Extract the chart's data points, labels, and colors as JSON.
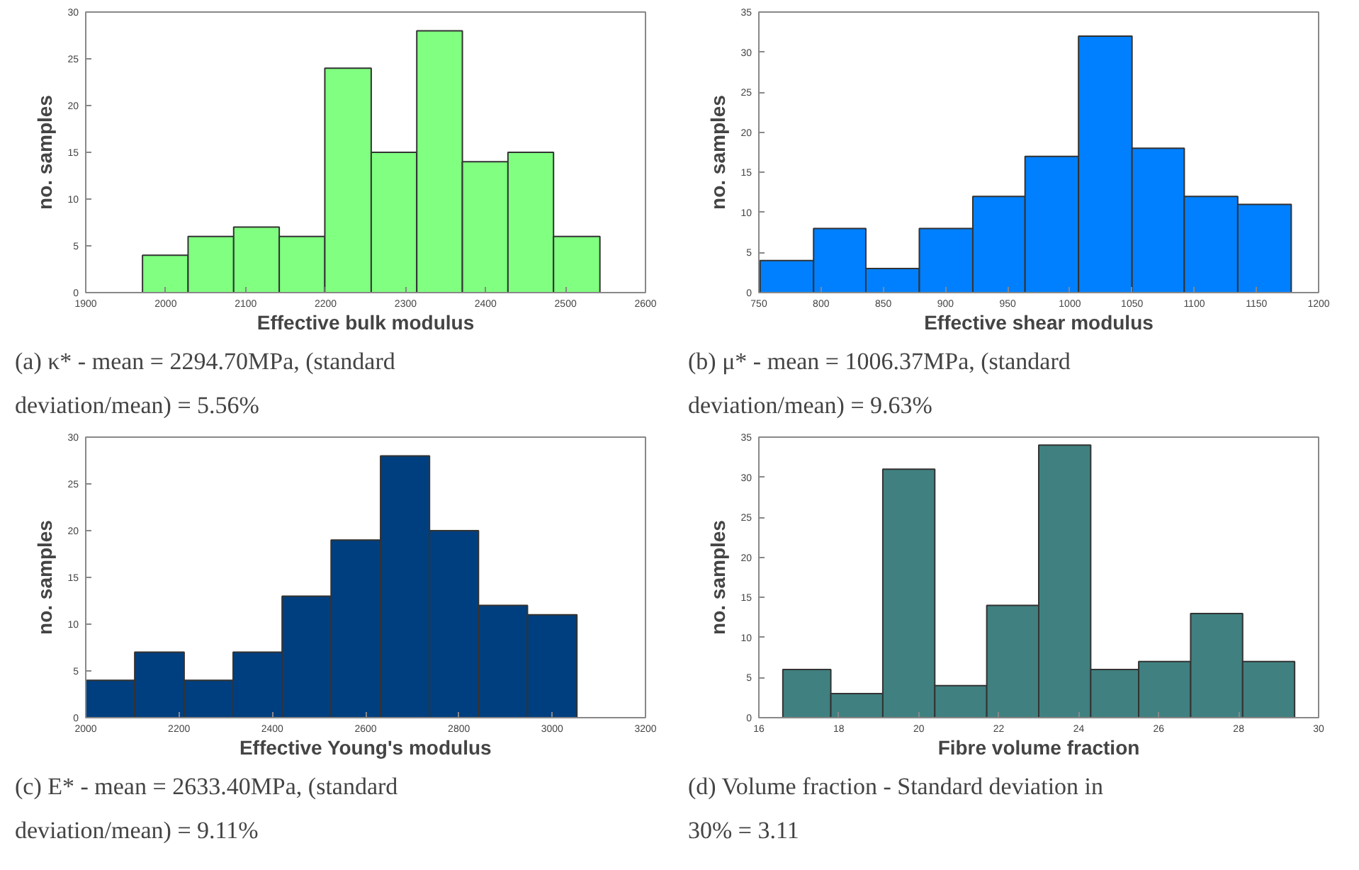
{
  "chart_data": [
    {
      "type": "histogram",
      "xlabel": "Effective bulk modulus",
      "ylabel": "no. samples",
      "color": "#80ff80",
      "bins": [
        1971,
        2028,
        2085,
        2142,
        2199,
        2257,
        2314,
        2371,
        2428,
        2485,
        2543
      ],
      "values": [
        4,
        6,
        7,
        6,
        24,
        15,
        28,
        14,
        15,
        6
      ],
      "xlim": [
        1900,
        2600
      ],
      "xticks": [
        1900,
        2000,
        2100,
        2200,
        2300,
        2400,
        2500,
        2600
      ],
      "ylim": [
        0,
        30
      ],
      "yticks": [
        0,
        5,
        10,
        15,
        20,
        25,
        30
      ],
      "annotations": [
        "(a) κ* - mean = 2294.70MPa, (standard deviation/mean) = 5.56%"
      ]
    },
    {
      "type": "histogram",
      "xlabel": "Effective shear modulus",
      "ylabel": "no. samples",
      "color": "#0080ff",
      "bins": [
        751,
        794,
        836,
        879,
        922,
        964,
        1007,
        1050,
        1092,
        1135,
        1178
      ],
      "values": [
        4,
        8,
        3,
        8,
        12,
        17,
        32,
        18,
        12,
        11
      ],
      "xlim": [
        750,
        1200
      ],
      "xticks": [
        750,
        800,
        850,
        900,
        950,
        1000,
        1050,
        1100,
        1150,
        1200
      ],
      "ylim": [
        0,
        35
      ],
      "yticks": [
        0,
        5,
        10,
        15,
        20,
        25,
        30,
        35
      ],
      "annotations": [
        "(b) μ* - mean = 1006.37MPa, (standard deviation/mean) = 9.63%"
      ]
    },
    {
      "type": "histogram",
      "xlabel": "Effective Young's modulus",
      "ylabel": "no. samples",
      "color": "#003f7f",
      "bins": [
        2000,
        2105,
        2211,
        2316,
        2421,
        2526,
        2632,
        2737,
        2842,
        2947,
        3053
      ],
      "values": [
        4,
        7,
        4,
        7,
        13,
        19,
        28,
        20,
        12,
        11
      ],
      "xlim": [
        2000,
        3200
      ],
      "xticks": [
        2000,
        2200,
        2400,
        2600,
        2800,
        3000,
        3200
      ],
      "ylim": [
        0,
        30
      ],
      "yticks": [
        0,
        5,
        10,
        15,
        20,
        25,
        30
      ],
      "annotations": [
        "(c) E* - mean = 2633.40MPa, (standard deviation/mean) = 9.11%"
      ]
    },
    {
      "type": "histogram",
      "xlabel": "Fibre volume fraction",
      "ylabel": "no. samples",
      "color": "#408080",
      "bins": [
        16.6,
        17.8,
        19.1,
        20.4,
        21.7,
        23.0,
        24.3,
        25.5,
        26.8,
        28.1,
        29.4
      ],
      "values": [
        6,
        3,
        31,
        4,
        14,
        34,
        6,
        7,
        13,
        7
      ],
      "xlim": [
        16,
        30
      ],
      "xticks": [
        16,
        18,
        20,
        22,
        24,
        26,
        28,
        30
      ],
      "ylim": [
        0,
        35
      ],
      "yticks": [
        0,
        5,
        10,
        15,
        20,
        25,
        30,
        35
      ],
      "annotations": [
        "(d) Volume fraction - Standard deviation in 30% = 3.11"
      ]
    }
  ]
}
